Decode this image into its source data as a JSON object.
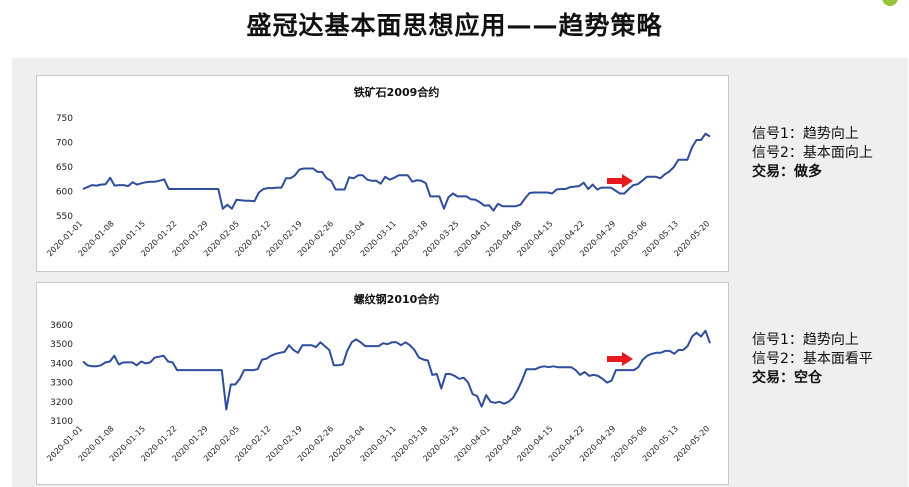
{
  "page": {
    "title": "盛冠达基本面思想应用——趋势策略"
  },
  "signals": [
    {
      "s1": "信号1：趋势向上",
      "s2": "信号2：基本面向上",
      "trade": "交易：做多"
    },
    {
      "s1": "信号1：趋势向上",
      "s2": "信号2：基本面看平",
      "trade": "交易：空仓"
    }
  ],
  "chart_data": [
    {
      "type": "line",
      "title": "铁矿石2009合约",
      "xticks": [
        "2020-01-01",
        "2020-01-08",
        "2020-01-15",
        "2020-01-22",
        "2020-01-29",
        "2020-02-05",
        "2020-02-12",
        "2020-02-19",
        "2020-02-26",
        "2020-03-04",
        "2020-03-11",
        "2020-03-18",
        "2020-03-25",
        "2020-04-01",
        "2020-04-08",
        "2020-04-15",
        "2020-04-22",
        "2020-04-29",
        "2020-05-06",
        "2020-05-13",
        "2020-05-20"
      ],
      "yticks": [
        550,
        600,
        650,
        700,
        750
      ],
      "ylim": [
        550,
        750
      ],
      "color": "#2e4d9b",
      "arrow_color": "#e8191c",
      "series": [
        {
          "values": [
            605,
            609,
            613,
            612,
            614,
            615,
            628,
            612,
            613,
            613,
            611,
            619,
            614,
            617,
            619,
            620,
            620,
            622,
            625,
            605,
            605,
            605,
            605,
            605,
            605,
            605,
            605,
            605,
            605,
            605,
            605,
            565,
            573,
            565,
            583,
            582,
            581,
            581,
            580,
            598,
            605,
            607,
            607,
            608,
            608,
            627,
            627,
            633,
            645,
            647,
            647,
            647,
            640,
            640,
            627,
            622,
            604,
            604,
            604,
            629,
            627,
            633,
            633,
            624,
            622,
            622,
            616,
            630,
            624,
            628,
            633,
            633,
            633,
            620,
            623,
            622,
            617,
            590,
            590,
            590,
            565,
            588,
            596,
            590,
            590,
            590,
            584,
            583,
            578,
            571,
            572,
            561,
            575,
            570,
            570,
            570,
            570,
            573,
            586,
            597,
            598,
            598,
            598,
            598,
            596,
            604,
            605,
            605,
            609,
            610,
            611,
            618,
            605,
            614,
            604,
            608,
            608,
            608,
            602,
            596,
            596,
            605,
            613,
            615,
            622,
            630,
            630,
            630,
            627,
            635,
            641,
            650,
            665,
            665,
            665,
            690,
            705,
            705,
            718,
            712
          ]
        }
      ]
    },
    {
      "type": "line",
      "title": "螺纹钢2010合约",
      "xticks": [
        "2020-01-01",
        "2020-01-08",
        "2020-01-15",
        "2020-01-22",
        "2020-01-29",
        "2020-02-05",
        "2020-02-12",
        "2020-02-19",
        "2020-02-26",
        "2020-03-04",
        "2020-03-11",
        "2020-03-18",
        "2020-03-25",
        "2020-04-01",
        "2020-04-08",
        "2020-04-15",
        "2020-04-22",
        "2020-04-29",
        "2020-05-06",
        "2020-05-13",
        "2020-05-20"
      ],
      "yticks": [
        3100,
        3200,
        3300,
        3400,
        3500,
        3600
      ],
      "ylim": [
        3100,
        3600
      ],
      "color": "#2e4d9b",
      "arrow_color": "#e8191c",
      "series": [
        {
          "values": [
            3410,
            3390,
            3385,
            3385,
            3390,
            3405,
            3410,
            3440,
            3395,
            3405,
            3405,
            3405,
            3390,
            3410,
            3400,
            3405,
            3430,
            3435,
            3440,
            3410,
            3405,
            3365,
            3365,
            3365,
            3365,
            3365,
            3365,
            3365,
            3365,
            3365,
            3365,
            3365,
            3160,
            3290,
            3290,
            3320,
            3365,
            3365,
            3365,
            3370,
            3420,
            3425,
            3440,
            3450,
            3455,
            3460,
            3495,
            3470,
            3455,
            3495,
            3495,
            3495,
            3485,
            3510,
            3490,
            3470,
            3390,
            3390,
            3395,
            3465,
            3510,
            3525,
            3510,
            3490,
            3490,
            3490,
            3490,
            3505,
            3500,
            3510,
            3510,
            3495,
            3510,
            3495,
            3470,
            3430,
            3420,
            3415,
            3340,
            3345,
            3270,
            3345,
            3345,
            3335,
            3320,
            3325,
            3300,
            3240,
            3230,
            3175,
            3235,
            3200,
            3195,
            3200,
            3190,
            3200,
            3220,
            3260,
            3310,
            3370,
            3370,
            3370,
            3380,
            3385,
            3380,
            3385,
            3380,
            3380,
            3380,
            3380,
            3365,
            3340,
            3355,
            3335,
            3340,
            3335,
            3320,
            3300,
            3310,
            3365,
            3365,
            3365,
            3365,
            3365,
            3380,
            3420,
            3440,
            3450,
            3455,
            3455,
            3465,
            3465,
            3450,
            3470,
            3470,
            3490,
            3540,
            3560,
            3540,
            3570,
            3505
          ]
        }
      ]
    }
  ]
}
